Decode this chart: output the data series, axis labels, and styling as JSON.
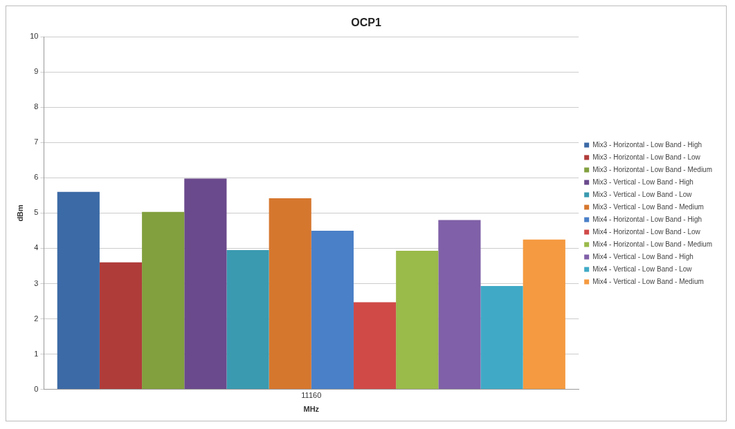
{
  "chart_data": {
    "type": "bar",
    "title": "OCP1",
    "xlabel": "MHz",
    "ylabel": "dBm",
    "categories": [
      "11160"
    ],
    "series": [
      {
        "name": "Mix3 - Horizontal - Low Band - High",
        "color": "#3c6aa6",
        "values": [
          5.6
        ]
      },
      {
        "name": "Mix3 - Horizontal - Low Band - Low",
        "color": "#b03c3a",
        "values": [
          3.6
        ]
      },
      {
        "name": "Mix3 - Horizontal - Low Band - Medium",
        "color": "#82a03e",
        "values": [
          5.03
        ]
      },
      {
        "name": "Mix3 - Vertical - Low Band - High",
        "color": "#6a4a8c",
        "values": [
          5.98
        ]
      },
      {
        "name": "Mix3 - Vertical - Low Band - Low",
        "color": "#3a9ab0",
        "values": [
          3.95
        ]
      },
      {
        "name": "Mix3 - Vertical - Low Band - Medium",
        "color": "#d6772e",
        "values": [
          5.42
        ]
      },
      {
        "name": "Mix4 - Horizontal - Low Band - High",
        "color": "#4a80c8",
        "values": [
          4.5
        ]
      },
      {
        "name": "Mix4 - Horizontal - Low Band - Low",
        "color": "#d04a48",
        "values": [
          2.47
        ]
      },
      {
        "name": "Mix4 - Horizontal - Low Band - Medium",
        "color": "#9aba4a",
        "values": [
          3.93
        ]
      },
      {
        "name": "Mix4 - Vertical - Low Band - High",
        "color": "#8060a8",
        "values": [
          4.8
        ]
      },
      {
        "name": "Mix4 - Vertical - Low Band - Low",
        "color": "#40aac6",
        "values": [
          2.93
        ]
      },
      {
        "name": "Mix4 - Vertical - Low Band - Medium",
        "color": "#f59a40",
        "values": [
          4.25
        ]
      }
    ],
    "ylim": [
      0,
      10
    ],
    "yticks": [
      0,
      1,
      2,
      3,
      4,
      5,
      6,
      7,
      8,
      9,
      10
    ],
    "grid": "y",
    "legend": "right"
  }
}
